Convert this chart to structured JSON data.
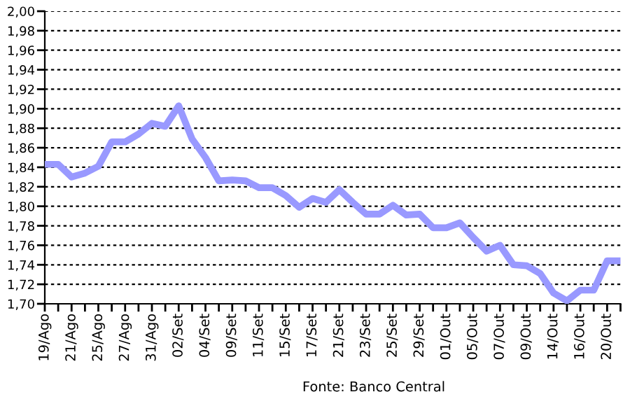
{
  "chart_data": {
    "type": "line",
    "categories": [
      "19/Ago",
      null,
      "21/Ago",
      null,
      "25/Ago",
      null,
      "27/Ago",
      null,
      "31/Ago",
      null,
      "02/Set",
      null,
      "04/Set",
      null,
      "09/Set",
      null,
      "11/Set",
      null,
      "15/Set",
      null,
      "17/Set",
      null,
      "21/Set",
      null,
      "23/Set",
      null,
      "25/Set",
      null,
      "29/Set",
      null,
      "01/Out",
      null,
      "05/Out",
      null,
      "07/Out",
      null,
      "09/Out",
      null,
      "14/Out",
      null,
      "16/Out",
      null,
      "20/Out",
      null
    ],
    "series": [
      {
        "color": "#9999ff",
        "values": [
          1.843,
          1.843,
          1.83,
          1.834,
          1.841,
          1.866,
          1.866,
          1.874,
          1.885,
          1.882,
          1.903,
          1.869,
          1.85,
          1.826,
          1.827,
          1.826,
          1.819,
          1.819,
          1.811,
          1.799,
          1.808,
          1.804,
          1.817,
          1.804,
          1.792,
          1.792,
          1.801,
          1.791,
          1.792,
          1.778,
          1.778,
          1.783,
          1.768,
          1.754,
          1.76,
          1.74,
          1.739,
          1.731,
          1.711,
          1.703,
          1.714,
          1.714,
          1.744,
          1.744
        ]
      }
    ],
    "ylim": [
      1.7,
      2.0
    ],
    "yticks": [
      {
        "value": 1.7,
        "label": "1,70"
      },
      {
        "value": 1.72,
        "label": "1,72"
      },
      {
        "value": 1.74,
        "label": "1,74"
      },
      {
        "value": 1.76,
        "label": "1,76"
      },
      {
        "value": 1.78,
        "label": "1,78"
      },
      {
        "value": 1.8,
        "label": "1,80"
      },
      {
        "value": 1.82,
        "label": "1,82"
      },
      {
        "value": 1.84,
        "label": "1,84"
      },
      {
        "value": 1.86,
        "label": "1,86"
      },
      {
        "value": 1.88,
        "label": "1,88"
      },
      {
        "value": 1.9,
        "label": "1,90"
      },
      {
        "value": 1.92,
        "label": "1,92"
      },
      {
        "value": 1.94,
        "label": "1,94"
      },
      {
        "value": 1.96,
        "label": "1,96"
      },
      {
        "value": 1.98,
        "label": "1,98"
      },
      {
        "value": 2.0,
        "label": "2,00"
      }
    ],
    "grid": "y",
    "line_style": "solid",
    "annotations": [
      "Fonte: Banco Central"
    ]
  }
}
